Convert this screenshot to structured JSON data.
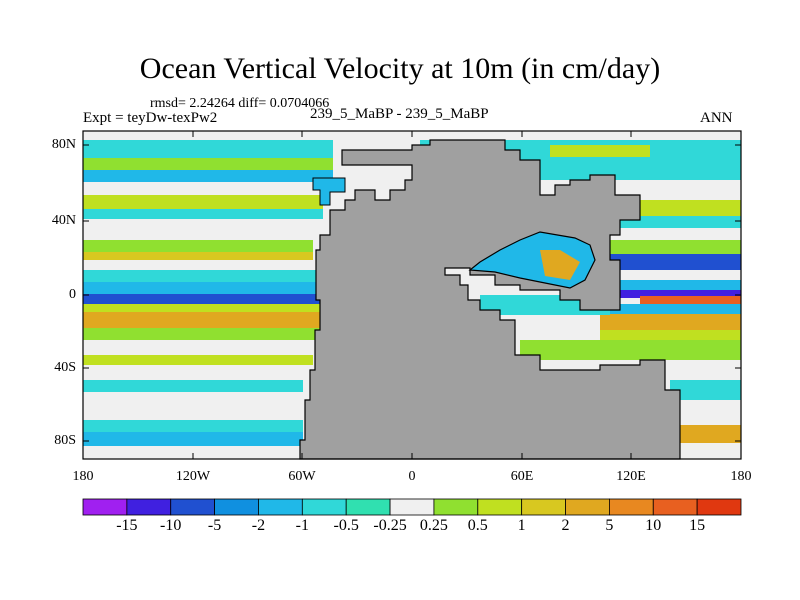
{
  "title": "Ocean Vertical Velocity at 10m (in cm/day)",
  "stats": "rmsd= 2.24264 diff= 0.0704066",
  "expt": "Expt = teyDw-texPw2",
  "case": "239_5_MaBP - 239_5_MaBP",
  "season": "ANN",
  "lat_labels": [
    "80N",
    "40N",
    "0",
    "40S",
    "80S"
  ],
  "lon_labels": [
    "180",
    "120W",
    "60W",
    "0",
    "60E",
    "120E",
    "180"
  ],
  "colorbar_labels": [
    "-15",
    "-10",
    "-5",
    "-2",
    "-1",
    "-0.5",
    "-0.25",
    "0.25",
    "0.5",
    "1",
    "2",
    "5",
    "10",
    "15"
  ],
  "colorbar_colors": [
    "#a020f0",
    "#4020e0",
    "#2050d0",
    "#1090e0",
    "#20b8e8",
    "#30d8d8",
    "#30e0b0",
    "#f0f0f0",
    "#90e030",
    "#c0e020",
    "#d8c820",
    "#e0a820",
    "#e88820",
    "#e86020",
    "#e03810"
  ],
  "land_color": "#a0a0a0"
}
